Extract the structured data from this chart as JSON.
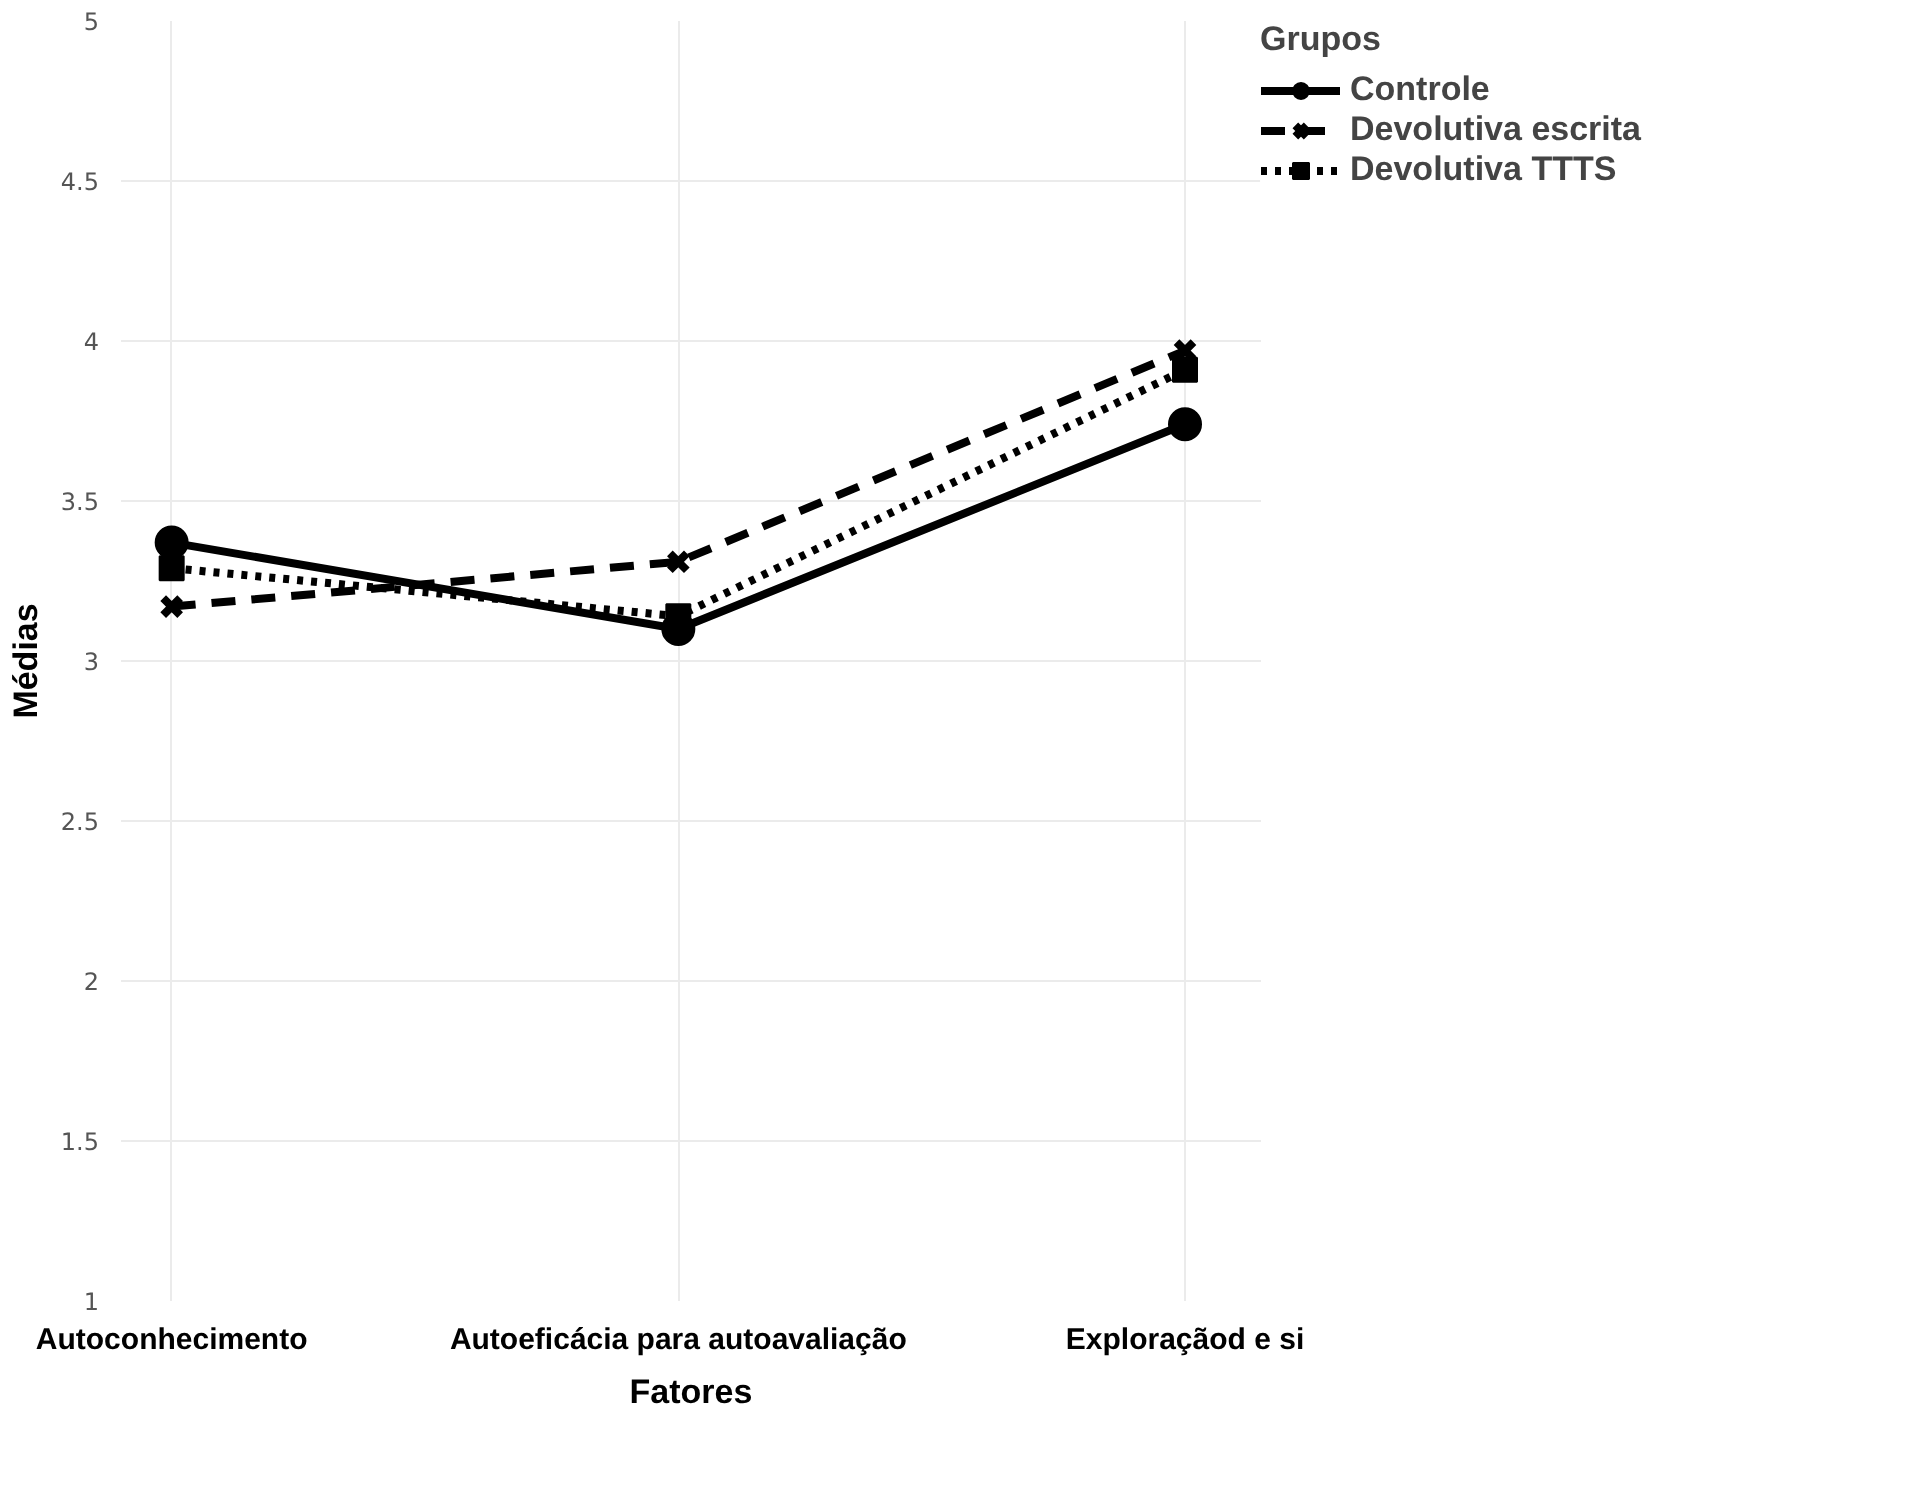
{
  "chart_data": {
    "type": "line",
    "xlabel": "Fatores",
    "ylabel": "Médias",
    "legend_title": "Grupos",
    "categories": [
      "Autoconhecimento",
      "Autoeficácia para autoavaliação",
      "Exploraçãod e si"
    ],
    "ylim": [
      1,
      5
    ],
    "yticks": [
      1,
      1.5,
      2,
      2.5,
      3,
      3.5,
      4,
      4.5,
      5
    ],
    "grid": true,
    "legend": "top right",
    "series": [
      {
        "name": "Controle",
        "color": "#000000",
        "marker": "circle",
        "line_style": "solid",
        "values": [
          3.37,
          3.1,
          3.74
        ]
      },
      {
        "name": "Devolutiva escrita",
        "color": "#000000",
        "marker": "cross",
        "line_style": "dashed",
        "values": [
          3.17,
          3.31,
          3.97
        ]
      },
      {
        "name": "Devolutiva TTTS",
        "color": "#000000",
        "marker": "square",
        "line_style": "dotted",
        "values": [
          3.29,
          3.14,
          3.91
        ]
      }
    ]
  }
}
